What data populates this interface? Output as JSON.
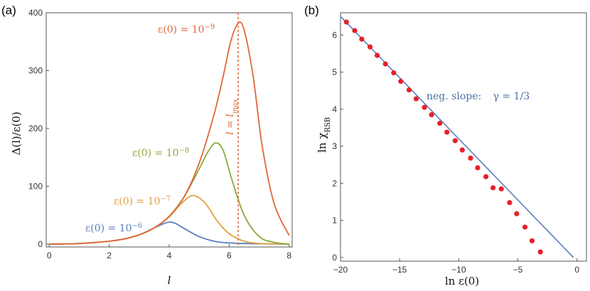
{
  "chart_data": [
    {
      "panel": "(a)",
      "type": "line",
      "xlabel": "l",
      "ylabel": "Δ(l)/ε(0)",
      "xlim": [
        -0.1,
        8.1
      ],
      "ylim": [
        -5,
        400
      ],
      "xticks": [
        "0",
        "2",
        "4",
        "6",
        "8"
      ],
      "yticks": [
        "0",
        "100",
        "200",
        "300",
        "400"
      ],
      "series": [
        {
          "name": "ε(0) = 10^-6",
          "label_main": "ε(0) = 10",
          "label_exp": "−6",
          "color": "#5b7fbf",
          "x": [
            0,
            1,
            2,
            2.5,
            3,
            3.5,
            3.8,
            4.0,
            4.2,
            4.5,
            5.0,
            5.5,
            6.0,
            7.0,
            8.0
          ],
          "y": [
            0,
            1,
            5,
            9,
            16,
            28,
            35,
            38,
            36,
            27,
            13,
            5,
            2,
            0.5,
            0
          ]
        },
        {
          "name": "ε(0) = 10^-7",
          "label_main": "ε(0) = 10",
          "label_exp": "−7",
          "color": "#e2a03a",
          "x": [
            0,
            1,
            2,
            2.5,
            3,
            3.5,
            4.0,
            4.4,
            4.8,
            5.2,
            5.6,
            6.0,
            6.5,
            7.0,
            7.5,
            8.0
          ],
          "y": [
            0,
            1,
            5,
            9,
            16,
            28,
            47,
            70,
            84,
            71,
            40,
            18,
            5,
            1,
            0.5,
            0
          ]
        },
        {
          "name": "ε(0) = 10^-8",
          "label_main": "ε(0) = 10",
          "label_exp": "−8",
          "color": "#8aab3c",
          "x": [
            0,
            1,
            2,
            2.5,
            3,
            3.5,
            4.0,
            4.5,
            5.0,
            5.3,
            5.55,
            5.8,
            6.1,
            6.5,
            7.0,
            7.5,
            8.0
          ],
          "y": [
            0,
            1,
            5,
            9,
            16,
            28,
            48,
            82,
            130,
            160,
            175,
            162,
            110,
            50,
            13,
            3,
            0
          ]
        },
        {
          "name": "ε(0) = 10^-9",
          "label_main": "ε(0) = 10",
          "label_exp": "−9",
          "color": "#e0663a",
          "x": [
            0,
            1,
            2,
            2.5,
            3,
            3.5,
            4.0,
            4.5,
            5.0,
            5.5,
            5.8,
            6.05,
            6.3,
            6.5,
            6.8,
            7.1,
            7.5,
            8.0
          ],
          "y": [
            0,
            1,
            5,
            9,
            16,
            28,
            48,
            82,
            140,
            225,
            290,
            350,
            382,
            370,
            290,
            170,
            70,
            15
          ]
        }
      ],
      "vline": {
        "x": 6.3,
        "label_main": "l = l",
        "label_sub": "max",
        "color": "#e0663a"
      }
    },
    {
      "panel": "(b)",
      "type": "scatter",
      "xlabel_main": "ln ε(0)",
      "ylabel_main": "ln χ",
      "ylabel_sub": "RSB",
      "xlim": [
        -20,
        0.8
      ],
      "ylim": [
        -0.1,
        6.6
      ],
      "xticks": [
        "−20",
        "−15",
        "−10",
        "−5",
        "0"
      ],
      "yticks": [
        "0",
        "1",
        "2",
        "3",
        "4",
        "5",
        "6"
      ],
      "points_color": "#e8202a",
      "points": {
        "x": [
          -19.5,
          -18.8,
          -18.2,
          -17.5,
          -16.9,
          -16.2,
          -15.5,
          -14.9,
          -14.2,
          -13.6,
          -12.9,
          -12.3,
          -11.6,
          -11.0,
          -10.3,
          -9.7,
          -9.0,
          -8.4,
          -7.7,
          -7.1,
          -6.4,
          -5.7,
          -5.1,
          -4.4,
          -3.8,
          -3.1
        ],
        "y": [
          6.35,
          6.12,
          5.89,
          5.68,
          5.45,
          5.22,
          4.98,
          4.75,
          4.52,
          4.28,
          4.05,
          3.85,
          3.62,
          3.38,
          3.15,
          2.9,
          2.68,
          2.42,
          2.18,
          1.88,
          1.85,
          1.48,
          1.18,
          0.82,
          0.45,
          0.15
        ]
      },
      "fit_color": "#5b7fbf",
      "fit": {
        "x": [
          -20,
          -0.3
        ],
        "y": [
          6.5,
          0
        ]
      },
      "annotation_text": "neg. slope:",
      "annotation_gamma": "γ = 1/3"
    }
  ]
}
